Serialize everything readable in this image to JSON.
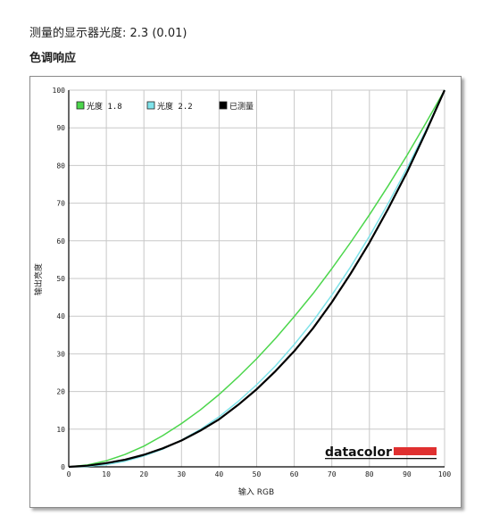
{
  "header": {
    "measured_label": "测量的显示器光度:",
    "measured_value": "2.3 (0.01)",
    "section_title": "色调响应"
  },
  "colors": {
    "gamma_18": "#4cd64c",
    "gamma_22": "#7fe3ea",
    "measured": "#000000",
    "grid": "#c8c8c8",
    "logo_bar": "#e03030"
  },
  "logo_text": "datacolor",
  "chart_data": {
    "type": "line",
    "xlabel": "输入 RGB",
    "ylabel": "输出亮度",
    "xlim": [
      0,
      100
    ],
    "ylim": [
      0,
      100
    ],
    "xticks": [
      0,
      10,
      20,
      30,
      40,
      50,
      60,
      70,
      80,
      90,
      100
    ],
    "yticks": [
      0,
      10,
      20,
      30,
      40,
      50,
      60,
      70,
      80,
      90,
      100
    ],
    "grid": true,
    "legend_position": "top-left",
    "series": [
      {
        "name": "光度 1.8",
        "color": "#4cd64c",
        "x": [
          0,
          5,
          10,
          15,
          20,
          25,
          30,
          35,
          40,
          45,
          50,
          55,
          60,
          65,
          70,
          75,
          80,
          85,
          90,
          95,
          100
        ],
        "y": [
          0,
          0.5,
          1.6,
          3.3,
          5.5,
          8.3,
          11.5,
          15.1,
          19.2,
          23.8,
          28.7,
          34.1,
          39.9,
          46.0,
          52.6,
          59.6,
          66.9,
          74.6,
          82.7,
          91.2,
          100
        ]
      },
      {
        "name": "光度 2.2",
        "color": "#7fe3ea",
        "x": [
          0,
          5,
          10,
          15,
          20,
          25,
          30,
          35,
          40,
          45,
          50,
          55,
          60,
          65,
          70,
          75,
          80,
          85,
          90,
          95,
          100
        ],
        "y": [
          0,
          0.1,
          0.6,
          1.5,
          2.9,
          4.7,
          7.1,
          9.9,
          13.3,
          17.3,
          21.8,
          26.8,
          32.5,
          38.7,
          45.6,
          53.1,
          61.2,
          69.9,
          79.3,
          89.3,
          100
        ]
      },
      {
        "name": "已测量",
        "color": "#000000",
        "x": [
          0,
          5,
          10,
          15,
          20,
          25,
          30,
          35,
          40,
          45,
          50,
          55,
          60,
          65,
          70,
          75,
          80,
          85,
          90,
          95,
          100
        ],
        "y": [
          0,
          0.3,
          1.0,
          1.9,
          3.2,
          4.9,
          7.0,
          9.6,
          12.6,
          16.4,
          20.6,
          25.4,
          30.7,
          36.8,
          43.7,
          51.3,
          59.5,
          68.5,
          78.2,
          88.8,
          100
        ]
      }
    ]
  }
}
